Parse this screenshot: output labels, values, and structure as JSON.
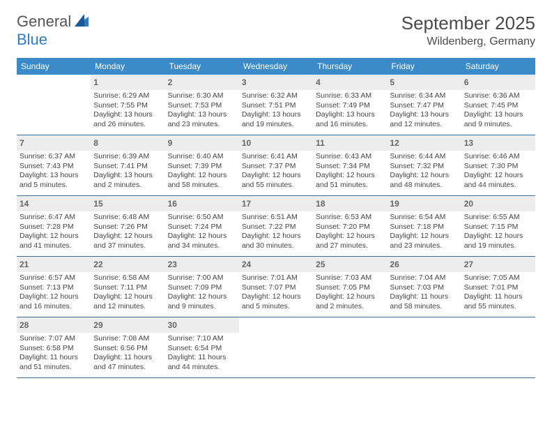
{
  "logo": {
    "text1": "General",
    "text2": "Blue",
    "color1": "#6a6a6a",
    "color2": "#2f7bbf"
  },
  "title": "September 2025",
  "location": "Wildenberg, Germany",
  "header_bg": "#3b8bc8",
  "shaded_bg": "#ededed",
  "border_color": "#3b6a95",
  "day_names": [
    "Sunday",
    "Monday",
    "Tuesday",
    "Wednesday",
    "Thursday",
    "Friday",
    "Saturday"
  ],
  "first_weekday_offset": 1,
  "days_in_month": 30,
  "days": [
    {
      "n": 1,
      "sunrise": "6:29 AM",
      "sunset": "7:55 PM",
      "daylight": "13 hours and 26 minutes."
    },
    {
      "n": 2,
      "sunrise": "6:30 AM",
      "sunset": "7:53 PM",
      "daylight": "13 hours and 23 minutes."
    },
    {
      "n": 3,
      "sunrise": "6:32 AM",
      "sunset": "7:51 PM",
      "daylight": "13 hours and 19 minutes."
    },
    {
      "n": 4,
      "sunrise": "6:33 AM",
      "sunset": "7:49 PM",
      "daylight": "13 hours and 16 minutes."
    },
    {
      "n": 5,
      "sunrise": "6:34 AM",
      "sunset": "7:47 PM",
      "daylight": "13 hours and 12 minutes."
    },
    {
      "n": 6,
      "sunrise": "6:36 AM",
      "sunset": "7:45 PM",
      "daylight": "13 hours and 9 minutes."
    },
    {
      "n": 7,
      "sunrise": "6:37 AM",
      "sunset": "7:43 PM",
      "daylight": "13 hours and 5 minutes."
    },
    {
      "n": 8,
      "sunrise": "6:39 AM",
      "sunset": "7:41 PM",
      "daylight": "13 hours and 2 minutes."
    },
    {
      "n": 9,
      "sunrise": "6:40 AM",
      "sunset": "7:39 PM",
      "daylight": "12 hours and 58 minutes."
    },
    {
      "n": 10,
      "sunrise": "6:41 AM",
      "sunset": "7:37 PM",
      "daylight": "12 hours and 55 minutes."
    },
    {
      "n": 11,
      "sunrise": "6:43 AM",
      "sunset": "7:34 PM",
      "daylight": "12 hours and 51 minutes."
    },
    {
      "n": 12,
      "sunrise": "6:44 AM",
      "sunset": "7:32 PM",
      "daylight": "12 hours and 48 minutes."
    },
    {
      "n": 13,
      "sunrise": "6:46 AM",
      "sunset": "7:30 PM",
      "daylight": "12 hours and 44 minutes."
    },
    {
      "n": 14,
      "sunrise": "6:47 AM",
      "sunset": "7:28 PM",
      "daylight": "12 hours and 41 minutes."
    },
    {
      "n": 15,
      "sunrise": "6:48 AM",
      "sunset": "7:26 PM",
      "daylight": "12 hours and 37 minutes."
    },
    {
      "n": 16,
      "sunrise": "6:50 AM",
      "sunset": "7:24 PM",
      "daylight": "12 hours and 34 minutes."
    },
    {
      "n": 17,
      "sunrise": "6:51 AM",
      "sunset": "7:22 PM",
      "daylight": "12 hours and 30 minutes."
    },
    {
      "n": 18,
      "sunrise": "6:53 AM",
      "sunset": "7:20 PM",
      "daylight": "12 hours and 27 minutes."
    },
    {
      "n": 19,
      "sunrise": "6:54 AM",
      "sunset": "7:18 PM",
      "daylight": "12 hours and 23 minutes."
    },
    {
      "n": 20,
      "sunrise": "6:55 AM",
      "sunset": "7:15 PM",
      "daylight": "12 hours and 19 minutes."
    },
    {
      "n": 21,
      "sunrise": "6:57 AM",
      "sunset": "7:13 PM",
      "daylight": "12 hours and 16 minutes."
    },
    {
      "n": 22,
      "sunrise": "6:58 AM",
      "sunset": "7:11 PM",
      "daylight": "12 hours and 12 minutes."
    },
    {
      "n": 23,
      "sunrise": "7:00 AM",
      "sunset": "7:09 PM",
      "daylight": "12 hours and 9 minutes."
    },
    {
      "n": 24,
      "sunrise": "7:01 AM",
      "sunset": "7:07 PM",
      "daylight": "12 hours and 5 minutes."
    },
    {
      "n": 25,
      "sunrise": "7:03 AM",
      "sunset": "7:05 PM",
      "daylight": "12 hours and 2 minutes."
    },
    {
      "n": 26,
      "sunrise": "7:04 AM",
      "sunset": "7:03 PM",
      "daylight": "11 hours and 58 minutes."
    },
    {
      "n": 27,
      "sunrise": "7:05 AM",
      "sunset": "7:01 PM",
      "daylight": "11 hours and 55 minutes."
    },
    {
      "n": 28,
      "sunrise": "7:07 AM",
      "sunset": "6:58 PM",
      "daylight": "11 hours and 51 minutes."
    },
    {
      "n": 29,
      "sunrise": "7:08 AM",
      "sunset": "6:56 PM",
      "daylight": "11 hours and 47 minutes."
    },
    {
      "n": 30,
      "sunrise": "7:10 AM",
      "sunset": "6:54 PM",
      "daylight": "11 hours and 44 minutes."
    }
  ],
  "labels": {
    "sunrise": "Sunrise:",
    "sunset": "Sunset:",
    "daylight": "Daylight:"
  }
}
